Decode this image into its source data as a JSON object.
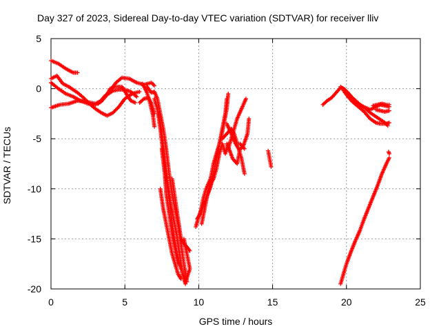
{
  "chart_data": {
    "type": "scatter",
    "title": "Day 327 of 2023, Sidereal Day-to-day VTEC variation (SDTVAR) for receiver lliv",
    "xlabel": "GPS time / hours",
    "ylabel": "SDTVAR / TECUs",
    "xlim": [
      0,
      25
    ],
    "ylim": [
      -20,
      5
    ],
    "xticks": [
      "0",
      "5",
      "10",
      "15",
      "20",
      "25"
    ],
    "yticks": [
      "5",
      "0",
      "-5",
      "-10",
      "-15",
      "-20"
    ],
    "grid": true,
    "marker": "+",
    "color": "#ff0000",
    "tracks": [
      [
        [
          0,
          2.8
        ],
        [
          0.5,
          2.5
        ],
        [
          1,
          2.0
        ],
        [
          1.5,
          1.6
        ],
        [
          1.8,
          1.6
        ]
      ],
      [
        [
          0,
          1.0
        ],
        [
          0.4,
          1.3
        ],
        [
          0.8,
          0.5
        ],
        [
          1.2,
          0.2
        ],
        [
          1.8,
          -0.4
        ],
        [
          2.2,
          -0.9
        ],
        [
          2.6,
          -1.5
        ],
        [
          3.0,
          -2.0
        ],
        [
          3.4,
          -2.4
        ],
        [
          3.8,
          -2.7
        ],
        [
          4.2,
          -2.4
        ],
        [
          4.6,
          -1.8
        ],
        [
          5.0,
          -1.0
        ],
        [
          5.5,
          -0.5
        ],
        [
          6.0,
          -0.3
        ]
      ],
      [
        [
          0,
          -1.9
        ],
        [
          0.6,
          -1.6
        ],
        [
          1.2,
          -1.5
        ],
        [
          1.8,
          -1.2
        ],
        [
          2.4,
          -1.3
        ],
        [
          3.0,
          -1.5
        ],
        [
          3.4,
          -1.2
        ],
        [
          3.8,
          -0.6
        ],
        [
          4.2,
          -0.2
        ],
        [
          4.6,
          -0.1
        ],
        [
          5.0,
          -0.1
        ],
        [
          5.4,
          -0.3
        ],
        [
          5.8,
          -0.8
        ]
      ],
      [
        [
          0,
          0.6
        ],
        [
          0.5,
          0.0
        ],
        [
          1.0,
          -0.5
        ],
        [
          1.5,
          -0.8
        ],
        [
          2.0,
          -1.2
        ],
        [
          2.5,
          -1.5
        ],
        [
          3.0,
          -1.6
        ],
        [
          3.4,
          -1.3
        ],
        [
          3.8,
          -0.6
        ],
        [
          4.0,
          0.0
        ],
        [
          4.3,
          0.2
        ],
        [
          4.8,
          0.2
        ],
        [
          5.1,
          -0.5
        ],
        [
          5.4,
          -1.2
        ],
        [
          5.7,
          -1.4
        ]
      ],
      [
        [
          3.2,
          -1.5
        ],
        [
          3.6,
          -0.8
        ],
        [
          4.0,
          -0.2
        ],
        [
          4.4,
          0.6
        ],
        [
          4.8,
          1.1
        ],
        [
          5.3,
          1.0
        ],
        [
          5.8,
          0.6
        ],
        [
          6.3,
          0.4
        ],
        [
          6.8,
          0.6
        ],
        [
          7.0,
          0.3
        ]
      ],
      [
        [
          6.2,
          0.5
        ],
        [
          6.5,
          -0.4
        ],
        [
          6.7,
          -1.4
        ],
        [
          6.9,
          -2.6
        ],
        [
          7.0,
          -3.8
        ]
      ],
      [
        [
          6.0,
          -1.4
        ],
        [
          6.3,
          -1.0
        ],
        [
          6.6,
          -0.9
        ],
        [
          6.8,
          -1.5
        ],
        [
          7.0,
          -2.5
        ]
      ],
      [
        [
          6.5,
          0.2
        ],
        [
          6.8,
          -0.4
        ],
        [
          7.0,
          -0.3
        ],
        [
          7.2,
          -1.0
        ],
        [
          7.4,
          -2.5
        ],
        [
          7.6,
          -4.0
        ],
        [
          7.8,
          -6.0
        ],
        [
          8.0,
          -8.5
        ],
        [
          8.2,
          -10.5
        ],
        [
          8.4,
          -12.0
        ],
        [
          8.6,
          -13.5
        ],
        [
          8.8,
          -15.5
        ],
        [
          9.0,
          -17.5
        ],
        [
          9.2,
          -19.3
        ]
      ],
      [
        [
          7.0,
          -1.0
        ],
        [
          7.2,
          -2.0
        ],
        [
          7.4,
          -4.0
        ],
        [
          7.6,
          -6.5
        ],
        [
          7.8,
          -9.0
        ],
        [
          8.0,
          -11.0
        ],
        [
          8.2,
          -13.5
        ],
        [
          8.4,
          -15.5
        ],
        [
          8.6,
          -17.0
        ],
        [
          8.8,
          -18.0
        ]
      ],
      [
        [
          7.3,
          -2.5
        ],
        [
          7.5,
          -4.5
        ],
        [
          7.7,
          -7.0
        ],
        [
          7.9,
          -9.5
        ],
        [
          8.1,
          -11.5
        ],
        [
          8.3,
          -13.0
        ],
        [
          8.5,
          -14.5
        ],
        [
          8.7,
          -16.5
        ],
        [
          8.9,
          -18.5
        ],
        [
          9.1,
          -19.5
        ]
      ],
      [
        [
          7.5,
          -6.0
        ],
        [
          7.7,
          -8.5
        ],
        [
          7.8,
          -10.5
        ],
        [
          8.0,
          -12.5
        ],
        [
          8.2,
          -14.5
        ],
        [
          8.4,
          -16.0
        ],
        [
          8.6,
          -17.5
        ]
      ],
      [
        [
          7.4,
          -10.0
        ],
        [
          7.6,
          -12.0
        ],
        [
          7.8,
          -13.5
        ],
        [
          8.0,
          -15.0
        ],
        [
          8.2,
          -16.5
        ],
        [
          8.4,
          -17.5
        ],
        [
          8.6,
          -18.5
        ],
        [
          8.8,
          -19.0
        ]
      ],
      [
        [
          8.2,
          -9.0
        ],
        [
          8.4,
          -11.0
        ],
        [
          8.6,
          -13.0
        ],
        [
          8.8,
          -15.0
        ],
        [
          9.0,
          -15.5
        ],
        [
          9.2,
          -15.8
        ],
        [
          9.4,
          -16.2
        ]
      ],
      [
        [
          9.0,
          -15.0
        ],
        [
          9.2,
          -16.5
        ],
        [
          9.4,
          -18.0
        ],
        [
          9.1,
          -19.3
        ]
      ],
      [
        [
          9.8,
          -13.8
        ],
        [
          10.0,
          -12.8
        ],
        [
          10.2,
          -12.0
        ],
        [
          10.5,
          -11.0
        ],
        [
          10.8,
          -9.8
        ],
        [
          11.0,
          -8.5
        ],
        [
          11.2,
          -7.0
        ],
        [
          11.4,
          -5.5
        ],
        [
          11.6,
          -4.0
        ],
        [
          11.8,
          -2.5
        ],
        [
          11.9,
          -1.0
        ]
      ],
      [
        [
          9.9,
          -13.0
        ],
        [
          10.1,
          -12.5
        ],
        [
          10.3,
          -11.0
        ],
        [
          10.5,
          -10.0
        ],
        [
          10.8,
          -9.0
        ],
        [
          11.0,
          -7.5
        ],
        [
          11.3,
          -6.0
        ],
        [
          11.5,
          -5.0
        ],
        [
          11.7,
          -3.5
        ],
        [
          11.9,
          -2.0
        ],
        [
          12.0,
          -0.5
        ]
      ],
      [
        [
          10.2,
          -13.5
        ],
        [
          10.4,
          -12.0
        ],
        [
          10.6,
          -10.5
        ],
        [
          10.8,
          -9.5
        ],
        [
          11.0,
          -9.0
        ],
        [
          11.2,
          -8.0
        ],
        [
          11.4,
          -6.5
        ],
        [
          11.6,
          -5.5
        ],
        [
          11.8,
          -6.5
        ],
        [
          12.0,
          -5.5
        ]
      ],
      [
        [
          11.6,
          -5.0
        ],
        [
          11.9,
          -4.5
        ],
        [
          12.2,
          -4.0
        ],
        [
          12.4,
          -4.5
        ],
        [
          12.6,
          -5.5
        ],
        [
          12.8,
          -5.5
        ],
        [
          13.1,
          -6.0
        ]
      ],
      [
        [
          12.0,
          -6.0
        ],
        [
          12.2,
          -5.0
        ],
        [
          12.4,
          -4.0
        ],
        [
          12.6,
          -3.0
        ],
        [
          12.9,
          -2.0
        ],
        [
          13.2,
          -1.0
        ]
      ],
      [
        [
          11.9,
          -3.5
        ],
        [
          12.2,
          -4.5
        ],
        [
          12.5,
          -5.5
        ],
        [
          12.7,
          -6.0
        ],
        [
          12.9,
          -7.0
        ],
        [
          13.1,
          -8.5
        ]
      ],
      [
        [
          11.9,
          -5.5
        ],
        [
          12.1,
          -6.2
        ],
        [
          12.3,
          -7.0
        ],
        [
          12.6,
          -7.5
        ],
        [
          12.8,
          -6.0
        ],
        [
          13.0,
          -5.8
        ],
        [
          13.3,
          -4.5
        ],
        [
          13.4,
          -3.0
        ]
      ],
      [
        [
          14.7,
          -6.2
        ],
        [
          14.75,
          -6.6
        ],
        [
          14.8,
          -7.0
        ],
        [
          14.85,
          -7.4
        ],
        [
          14.9,
          -7.8
        ]
      ],
      [
        [
          18.4,
          -1.6
        ],
        [
          18.7,
          -1.2
        ],
        [
          19.0,
          -0.9
        ],
        [
          19.3,
          -0.4
        ],
        [
          19.6,
          0.1
        ],
        [
          19.8,
          0.0
        ],
        [
          20.1,
          -0.4
        ],
        [
          20.4,
          -0.9
        ],
        [
          20.7,
          -1.3
        ],
        [
          21.0,
          -1.7
        ],
        [
          21.3,
          -2.0
        ],
        [
          21.6,
          -2.4
        ],
        [
          21.9,
          -2.7
        ],
        [
          22.2,
          -3.0
        ],
        [
          22.6,
          -3.4
        ],
        [
          22.8,
          -3.7
        ]
      ],
      [
        [
          19.6,
          0.2
        ],
        [
          19.9,
          -0.1
        ],
        [
          20.2,
          -0.6
        ],
        [
          20.5,
          -1.2
        ],
        [
          20.9,
          -1.6
        ],
        [
          21.3,
          -1.9
        ],
        [
          21.6,
          -2.1
        ],
        [
          22.0,
          -1.8
        ],
        [
          22.3,
          -1.6
        ],
        [
          22.6,
          -1.7
        ],
        [
          22.9,
          -1.8
        ]
      ],
      [
        [
          19.8,
          -0.2
        ],
        [
          20.1,
          -0.8
        ],
        [
          20.4,
          -1.3
        ],
        [
          20.8,
          -1.8
        ],
        [
          21.2,
          -2.3
        ],
        [
          21.6,
          -3.0
        ],
        [
          22.0,
          -3.4
        ],
        [
          22.3,
          -3.5
        ],
        [
          22.7,
          -3.5
        ],
        [
          22.9,
          -3.4
        ]
      ],
      [
        [
          21.8,
          -1.7
        ],
        [
          22.1,
          -1.6
        ],
        [
          22.4,
          -1.5
        ],
        [
          22.7,
          -1.6
        ],
        [
          22.9,
          -1.6
        ]
      ],
      [
        [
          22.0,
          -2.1
        ],
        [
          22.3,
          -2.2
        ],
        [
          22.6,
          -2.3
        ],
        [
          22.9,
          -2.2
        ]
      ],
      [
        [
          19.6,
          -19.5
        ],
        [
          19.8,
          -18.5
        ],
        [
          20.0,
          -17.5
        ],
        [
          20.3,
          -16.3
        ],
        [
          20.6,
          -15.2
        ],
        [
          20.9,
          -14.2
        ],
        [
          21.2,
          -13.0
        ],
        [
          21.5,
          -11.9
        ],
        [
          21.8,
          -10.8
        ],
        [
          22.1,
          -9.7
        ],
        [
          22.4,
          -8.5
        ],
        [
          22.7,
          -7.5
        ],
        [
          22.9,
          -6.9
        ]
      ],
      [
        [
          22.85,
          -6.3
        ],
        [
          22.9,
          -6.5
        ]
      ]
    ]
  }
}
